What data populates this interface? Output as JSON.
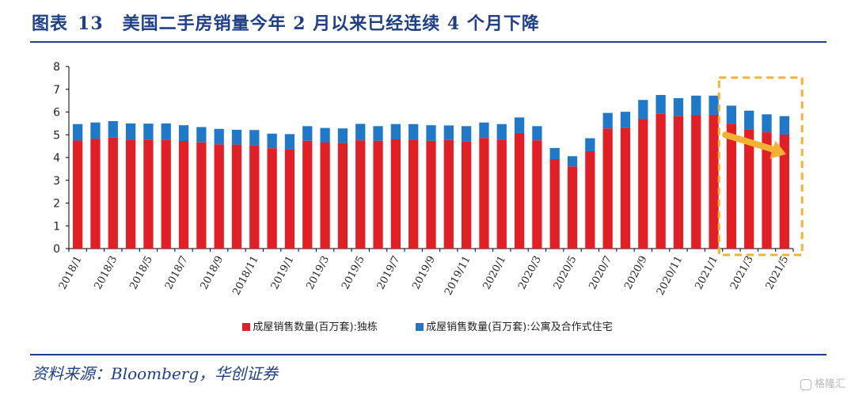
{
  "header": {
    "title_prefix": "图表",
    "title_number": "13",
    "title_text": "美国二手房销量今年 2 月以来已经连续 4 个月下降"
  },
  "source": "资料来源：Bloomberg，华创证券",
  "watermark": "格隆汇",
  "colors": {
    "title": "#1f3f86",
    "series_single_family": "#e31f26",
    "series_condo": "#1f78c8",
    "highlight_box": "#f2b233",
    "arrow": "#f2b233"
  },
  "chart_data": {
    "type": "bar",
    "stacked": true,
    "categories": [
      "2018/1",
      "2018/2",
      "2018/3",
      "2018/4",
      "2018/5",
      "2018/6",
      "2018/7",
      "2018/8",
      "2018/9",
      "2018/10",
      "2018/11",
      "2018/12",
      "2019/1",
      "2019/2",
      "2019/3",
      "2019/4",
      "2019/5",
      "2019/6",
      "2019/7",
      "2019/8",
      "2019/9",
      "2019/10",
      "2019/11",
      "2019/12",
      "2020/1",
      "2020/2",
      "2020/3",
      "2020/4",
      "2020/5",
      "2020/6",
      "2020/7",
      "2020/8",
      "2020/9",
      "2020/10",
      "2020/11",
      "2020/12",
      "2021/1",
      "2021/2",
      "2021/3",
      "2021/4",
      "2021/5"
    ],
    "tick_labels": [
      "2018/1",
      "2018/3",
      "2018/5",
      "2018/7",
      "2018/9",
      "2018/11",
      "2019/1",
      "2019/3",
      "2019/5",
      "2019/7",
      "2019/9",
      "2019/11",
      "2020/1",
      "2020/3",
      "2020/5",
      "2020/7",
      "2020/9",
      "2020/11",
      "2021/1",
      "2021/3",
      "2021/5"
    ],
    "series": [
      {
        "name": "成屋销售数量(百万套):独栋",
        "color": "#e31f26",
        "values": [
          4.75,
          4.82,
          4.88,
          4.78,
          4.77,
          4.77,
          4.73,
          4.67,
          4.58,
          4.57,
          4.55,
          4.41,
          4.35,
          4.74,
          4.66,
          4.64,
          4.76,
          4.74,
          4.8,
          4.78,
          4.74,
          4.77,
          4.7,
          4.86,
          4.79,
          5.08,
          4.76,
          3.93,
          3.61,
          4.28,
          5.28,
          5.3,
          5.69,
          5.92,
          5.82,
          5.86,
          5.88,
          5.49,
          5.24,
          5.11,
          5.01
        ]
      },
      {
        "name": "成屋销售数量(百万套):公寓及合作式住宅",
        "color": "#1f78c8",
        "values": [
          0.72,
          0.72,
          0.72,
          0.72,
          0.72,
          0.73,
          0.69,
          0.67,
          0.68,
          0.65,
          0.66,
          0.64,
          0.68,
          0.64,
          0.64,
          0.64,
          0.72,
          0.64,
          0.67,
          0.69,
          0.68,
          0.64,
          0.68,
          0.68,
          0.68,
          0.68,
          0.62,
          0.49,
          0.45,
          0.57,
          0.68,
          0.71,
          0.84,
          0.83,
          0.79,
          0.86,
          0.84,
          0.79,
          0.82,
          0.79,
          0.81
        ]
      }
    ],
    "ylim": [
      0,
      8
    ],
    "yticks": [
      0,
      1,
      2,
      3,
      4,
      5,
      6,
      7,
      8
    ],
    "grid": false,
    "legend_position": "bottom",
    "annotations": [
      {
        "type": "highlight-box",
        "from": "2021/2",
        "to": "2021/5",
        "style": "dashed"
      },
      {
        "type": "arrow",
        "direction": "down-right",
        "from": "2021/2",
        "to": "2021/5"
      }
    ]
  }
}
